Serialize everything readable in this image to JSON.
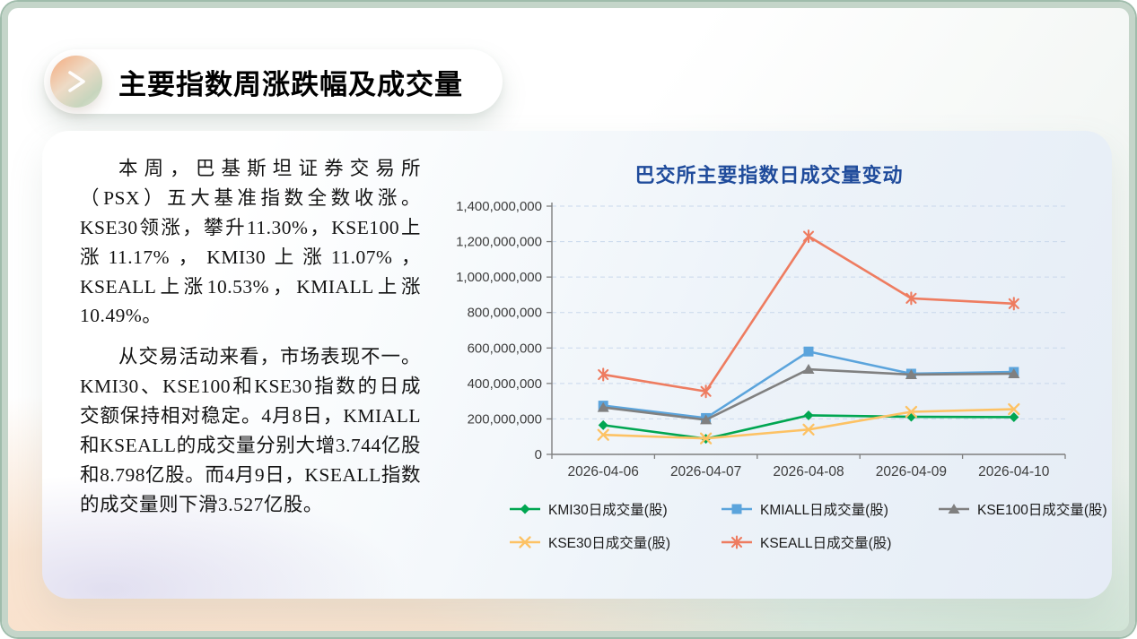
{
  "slide": {
    "title": "主要指数周涨跌幅及成交量",
    "paragraphs": [
      "本周，巴基斯坦证券交易所（PSX）五大基准指数全数收涨。KSE30领涨，攀升11.30%，KSE100上涨11.17%，KMI30上涨11.07%，KSEALL上涨10.53%，KMIALL上涨10.49%。",
      "从交易活动来看，市场表现不一。KMI30、KSE100和KSE30指数的日成交额保持相对稳定。4月8日，KMIALL和KSEALL的成交量分别大增3.744亿股和8.798亿股。而4月9日，KSEALL指数的成交量则下滑3.527亿股。"
    ]
  },
  "chart_data": {
    "type": "line",
    "title": "巴交所主要指数日成交量变动",
    "categories": [
      "2026-04-06",
      "2026-04-07",
      "2026-04-08",
      "2026-04-09",
      "2026-04-10"
    ],
    "series": [
      {
        "name": "KMI30日成交量(股)",
        "marker": "diamond",
        "color": "#00A651",
        "values": [
          165000000,
          88000000,
          220000000,
          212000000,
          210000000
        ]
      },
      {
        "name": "KMIALL日成交量(股)",
        "marker": "square",
        "color": "#5BA4DC",
        "values": [
          275000000,
          205000000,
          580000000,
          455000000,
          465000000
        ]
      },
      {
        "name": "KSE100日成交量(股)",
        "marker": "triangle",
        "color": "#808080",
        "values": [
          265000000,
          195000000,
          480000000,
          450000000,
          455000000
        ]
      },
      {
        "name": "KSE30日成交量(股)",
        "marker": "x",
        "color": "#FDC264",
        "values": [
          110000000,
          90000000,
          140000000,
          240000000,
          255000000
        ]
      },
      {
        "name": "KSEALL日成交量(股)",
        "marker": "star",
        "color": "#EE7C60",
        "values": [
          450000000,
          355000000,
          1230000000,
          880000000,
          850000000
        ]
      }
    ],
    "ylim": [
      0,
      1400000000
    ],
    "ytick_step": 200000000,
    "grid": true,
    "legend_position": "bottom"
  },
  "colors": {
    "chart_title": "#1f4b9b",
    "axis": "#7f7f7f",
    "gridline": "#c9d8ec",
    "tick_label": "#3d3d3d",
    "frame_border": "#c4d5c9"
  }
}
